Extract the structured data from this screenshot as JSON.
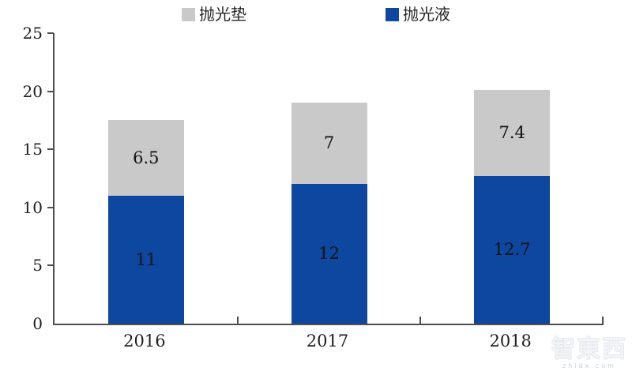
{
  "legend": {
    "items": [
      {
        "label": "抛光垫",
        "color": "#c9c9c9"
      },
      {
        "label": "抛光液",
        "color": "#0d47a0"
      }
    ]
  },
  "chart_data": {
    "type": "bar",
    "stacked": true,
    "title": "",
    "categories": [
      "2016",
      "2017",
      "2018"
    ],
    "series": [
      {
        "name": "抛光液",
        "color": "#0d47a0",
        "values": [
          11,
          12,
          12.7
        ]
      },
      {
        "name": "抛光垫",
        "color": "#c9c9c9",
        "values": [
          6.5,
          7,
          7.4
        ]
      }
    ],
    "ylim": [
      0,
      25
    ],
    "yticks": [
      0,
      5,
      10,
      15,
      20,
      25
    ],
    "grid": false,
    "legend_position": "top"
  },
  "watermark": {
    "line1": "智東西",
    "line2": "zhidx.com"
  }
}
